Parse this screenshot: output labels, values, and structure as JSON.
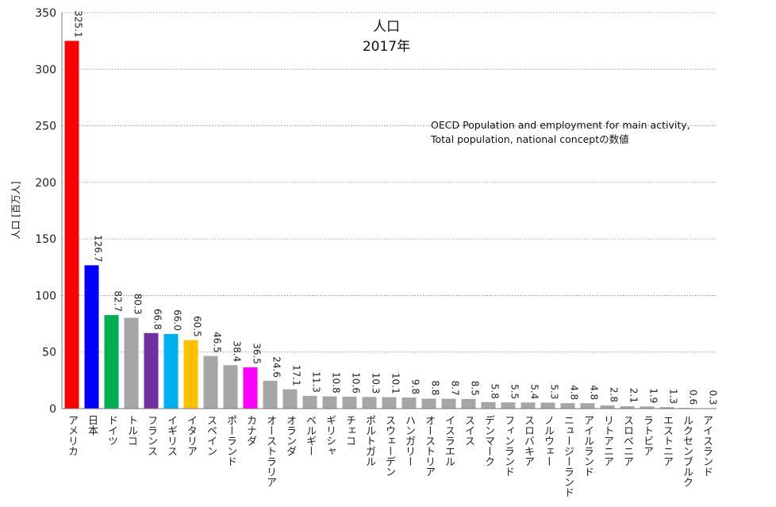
{
  "chart_data": {
    "type": "bar",
    "title": "人口",
    "subtitle": "2017年",
    "ylabel": "人口 [百万人]",
    "ylim": [
      0,
      350
    ],
    "yticks": [
      0,
      50,
      100,
      150,
      200,
      250,
      300,
      350
    ],
    "grid": true,
    "annotation": [
      "OECD Population and employment for main activity,",
      "Total population, national conceptの数値"
    ],
    "categories": [
      "アメリカ",
      "日本",
      "ドイツ",
      "トルコ",
      "フランス",
      "イギリス",
      "イタリア",
      "スペイン",
      "ポーランド",
      "カナダ",
      "オーストラリア",
      "オランダ",
      "ベルギー",
      "ギリシャ",
      "チェコ",
      "ポルトガル",
      "スウェーデン",
      "ハンガリー",
      "オーストリア",
      "イスラエル",
      "スイス",
      "デンマーク",
      "フィンランド",
      "スロバキア",
      "ノルウェー",
      "ニュージーランド",
      "アイルランド",
      "リトアニア",
      "スロベニア",
      "ラトビア",
      "エストニア",
      "ルクセンブルク",
      "アイスランド"
    ],
    "values": [
      325.1,
      126.7,
      82.7,
      80.3,
      66.8,
      66.0,
      60.5,
      46.5,
      38.4,
      36.5,
      24.6,
      17.1,
      11.3,
      10.8,
      10.6,
      10.3,
      10.1,
      9.8,
      8.8,
      8.7,
      8.5,
      5.8,
      5.5,
      5.4,
      5.3,
      4.8,
      4.8,
      2.8,
      2.1,
      1.9,
      1.3,
      0.6,
      0.3
    ],
    "labels": [
      "325.1",
      "126.7",
      "82.7",
      "80.3",
      "66.8",
      "66.0",
      "60.5",
      "46.5",
      "38.4",
      "36.5",
      "24.6",
      "17.1",
      "11.3",
      "10.8",
      "10.6",
      "10.3",
      "10.1",
      "9.8",
      "8.8",
      "8.7",
      "8.5",
      "5.8",
      "5.5",
      "5.4",
      "5.3",
      "4.8",
      "4.8",
      "2.8",
      "2.1",
      "1.9",
      "1.3",
      "0.6",
      "0.3"
    ],
    "colors": [
      "#ff0000",
      "#0000ff",
      "#00b050",
      "#a6a6a6",
      "#7030a0",
      "#00b0f0",
      "#ffc000",
      "#a6a6a6",
      "#a6a6a6",
      "#ff00ff",
      "#a6a6a6",
      "#a6a6a6",
      "#a6a6a6",
      "#a6a6a6",
      "#a6a6a6",
      "#a6a6a6",
      "#a6a6a6",
      "#a6a6a6",
      "#a6a6a6",
      "#a6a6a6",
      "#a6a6a6",
      "#a6a6a6",
      "#a6a6a6",
      "#a6a6a6",
      "#a6a6a6",
      "#a6a6a6",
      "#a6a6a6",
      "#a6a6a6",
      "#a6a6a6",
      "#a6a6a6",
      "#a6a6a6",
      "#a6a6a6",
      "#a6a6a6"
    ]
  }
}
